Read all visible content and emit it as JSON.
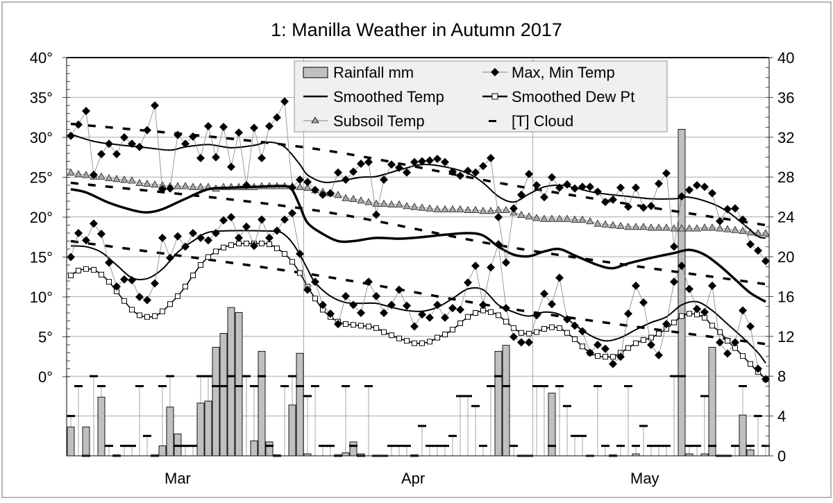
{
  "chart_data": {
    "type": "line",
    "title": "1: Manilla Weather in Autumn 2017",
    "x_ticks": [
      {
        "label": "Mar",
        "date": "Mar 16"
      },
      {
        "label": "Apr",
        "date": "Apr 16"
      },
      {
        "label": "May",
        "date": "May 16"
      }
    ],
    "x_gridlines": [
      "Apr 1",
      "May 1"
    ],
    "y_left": {
      "ticks": [
        "0°",
        "5°",
        "10°",
        "15°",
        "20°",
        "25°",
        "30°",
        "35°",
        "40°"
      ],
      "range": [
        0,
        40
      ],
      "unit": "°C"
    },
    "y_right": {
      "ticks": [
        "0",
        "4",
        "8",
        "12",
        "16",
        "20",
        "24",
        "28",
        "32",
        "36",
        "40"
      ],
      "range": [
        0,
        40
      ]
    },
    "grid": true,
    "legend": {
      "placement": "top-center",
      "entries": [
        "Rainfall mm",
        "Max, Min Temp",
        "Smoothed Temp",
        "Smoothed Dew Pt",
        "Subsoil Temp",
        "[T] Cloud"
      ]
    },
    "colors": {
      "rain_fill": "#c0c0c0",
      "subsoil_fill": "#a8a8a8",
      "line": "#000000",
      "connector": "#808080",
      "legend_bg": "#f0f0f0"
    },
    "daily": {
      "rainfall_mm": [
        2.9,
        0,
        2.9,
        0,
        5.9,
        0,
        0.1,
        0,
        0,
        0,
        0,
        0.1,
        1.0,
        4.9,
        2.2,
        0,
        0,
        5.3,
        5.5,
        10.9,
        12.3,
        14.9,
        14.4,
        0,
        1.5,
        10.5,
        1.4,
        0.1,
        0,
        5.1,
        10.3,
        0.2,
        0,
        0,
        0,
        0.1,
        0.3,
        1.4,
        0.2,
        0,
        0,
        0,
        0,
        0,
        0,
        0.1,
        0,
        0,
        0,
        0,
        0,
        0,
        0,
        0,
        0,
        0,
        10.5,
        11.1,
        0,
        0,
        0,
        0,
        0,
        6.3,
        0,
        0,
        0,
        0,
        0,
        0,
        0,
        0.1,
        0,
        0,
        0.2,
        0,
        0,
        0,
        0,
        0,
        32.8,
        0.2,
        0,
        0.2,
        10.9,
        0,
        0,
        0,
        4.1,
        0.6,
        0,
        0
      ],
      "max_temp": [
        30.2,
        31.6,
        33.3,
        25.3,
        27.9,
        29.2,
        27.9,
        30.0,
        29.2,
        28.8,
        30.9,
        34.0,
        23.5,
        23.6,
        30.3,
        29.2,
        30.1,
        27.4,
        31.4,
        27.5,
        31.3,
        26.3,
        30.6,
        24.0,
        31.2,
        27.4,
        31.4,
        32.5,
        34.5,
        23.7,
        24.7,
        24.4,
        23.4,
        22.8,
        23.0,
        25.6,
        24.7,
        25.7,
        26.7,
        26.9,
        20.3,
        24.7,
        26.6,
        26.2,
        25.6,
        26.9,
        27.0,
        27.1,
        27.3,
        26.9,
        25.7,
        25.2,
        25.8,
        25.6,
        26.4,
        27.4,
        20.0,
        14.3,
        21.1,
        22.8,
        25.4,
        24.0,
        22.5,
        25.0,
        23.7,
        24.1,
        23.6,
        23.8,
        23.8,
        23.2,
        21.9,
        22.2,
        23.7,
        21.3,
        23.7,
        21.2,
        21.4,
        24.2,
        25.5,
        16.3,
        22.6,
        23.4,
        24.0,
        23.8,
        23.0,
        19.5,
        21.0,
        21.1,
        19.7,
        16.6,
        15.8,
        14.5
      ],
      "min_temp": [
        15.0,
        18.0,
        17.1,
        19.2,
        17.9,
        14.3,
        11.3,
        12.2,
        12.1,
        10.0,
        9.6,
        11.7,
        17.4,
        14.9,
        17.6,
        16.3,
        18.0,
        17.4,
        17.1,
        18.0,
        19.6,
        20.0,
        17.4,
        18.8,
        16.4,
        19.7,
        17.4,
        18.3,
        19.7,
        20.5,
        15.4,
        10.9,
        11.9,
        9.0,
        7.9,
        6.6,
        10.1,
        9.0,
        8.0,
        11.9,
        10.1,
        8.0,
        9.0,
        10.9,
        8.9,
        6.3,
        7.8,
        7.4,
        9.0,
        7.4,
        8.6,
        8.4,
        11.8,
        13.9,
        9.0,
        13.7,
        16.6,
        8.6,
        5.0,
        4.3,
        4.3,
        7.7,
        10.4,
        9.1,
        12.4,
        7.2,
        6.4,
        5.7,
        3.0,
        4.0,
        3.5,
        1.6,
        2.5,
        7.9,
        11.4,
        9.3,
        4.0,
        2.7,
        6.6,
        11.9,
        13.9,
        11.0,
        8.5,
        8.1,
        11.4,
        4.3,
        2.9,
        4.3,
        8.3,
        6.3,
        1.0,
        -0.3
      ],
      "subsoil_temp": [
        25.6,
        25.4,
        25.3,
        25.1,
        25.1,
        24.9,
        24.8,
        24.7,
        24.6,
        24.3,
        24.2,
        24.1,
        24.0,
        23.9,
        23.9,
        23.9,
        23.8,
        23.8,
        23.8,
        23.6,
        23.8,
        23.8,
        23.8,
        23.8,
        23.8,
        23.9,
        23.9,
        23.9,
        23.9,
        23.9,
        23.8,
        23.7,
        23.4,
        23.2,
        23.0,
        22.8,
        22.4,
        22.3,
        22.1,
        21.9,
        21.7,
        21.7,
        21.6,
        21.6,
        21.4,
        21.3,
        21.2,
        21.1,
        21.0,
        21.0,
        21.0,
        21.0,
        20.9,
        20.9,
        20.8,
        20.8,
        20.9,
        20.9,
        20.6,
        20.3,
        20.1,
        19.9,
        19.8,
        19.8,
        19.8,
        19.8,
        19.7,
        19.7,
        19.5,
        19.2,
        19.1,
        19.0,
        18.9,
        18.8,
        18.8,
        18.8,
        18.7,
        18.7,
        18.7,
        18.6,
        18.6,
        18.6,
        18.6,
        18.7,
        18.7,
        18.6,
        18.5,
        18.4,
        18.3,
        18.1,
        18.0,
        18.0
      ],
      "smoothed_dew_pt": [
        12.7,
        13.3,
        13.5,
        13.4,
        12.8,
        11.9,
        10.7,
        9.5,
        8.4,
        7.7,
        7.5,
        7.6,
        8.2,
        9.1,
        10.1,
        11.3,
        12.7,
        14.0,
        15.0,
        15.7,
        16.2,
        16.5,
        16.7,
        16.7,
        16.7,
        16.7,
        16.6,
        16.1,
        15.4,
        14.4,
        13.0,
        11.3,
        9.8,
        8.4,
        7.5,
        6.9,
        6.6,
        6.5,
        6.4,
        6.3,
        6.1,
        5.6,
        5.2,
        4.8,
        4.5,
        4.2,
        4.2,
        4.4,
        4.9,
        5.3,
        5.9,
        6.7,
        7.5,
        8.0,
        8.3,
        8.1,
        7.7,
        6.9,
        6.1,
        5.5,
        5.4,
        5.6,
        6.0,
        6.2,
        6.1,
        5.5,
        4.7,
        3.8,
        3.0,
        2.6,
        2.5,
        2.5,
        3.0,
        3.6,
        4.2,
        4.6,
        4.9,
        5.4,
        6.0,
        6.8,
        7.6,
        7.9,
        7.8,
        7.4,
        6.4,
        5.6,
        4.5,
        3.6,
        2.6,
        1.6,
        0.6,
        -0.3
      ],
      "cloud_oktas": [
        4,
        7,
        0,
        8,
        7,
        1,
        0,
        1,
        1,
        7,
        2,
        0,
        7,
        8,
        1,
        1,
        1,
        8,
        8,
        7,
        7,
        8,
        7,
        8,
        7,
        8,
        1,
        0,
        7,
        8,
        7,
        6,
        7,
        1,
        1,
        0,
        7,
        1,
        0,
        7,
        0,
        0,
        1,
        1,
        1,
        0,
        3,
        1,
        1,
        1,
        2,
        6,
        6,
        5,
        1,
        7,
        8,
        7,
        1,
        0,
        0,
        7,
        7,
        1,
        7,
        5,
        2,
        2,
        0,
        7,
        1,
        0,
        1,
        7,
        1,
        3,
        1,
        1,
        1,
        8,
        8,
        1,
        1,
        6,
        1,
        0,
        0,
        1,
        7,
        1,
        4,
        1
      ]
    },
    "smoothed_temp": {
      "max": [
        [
          "Mar 1",
          30.4
        ],
        [
          "Mar 4",
          29.5
        ],
        [
          "Mar 7",
          29.1
        ],
        [
          "Mar 11",
          28.7
        ],
        [
          "Mar 14",
          28.4
        ],
        [
          "Mar 16",
          28.8
        ],
        [
          "Mar 19",
          29.1
        ],
        [
          "Mar 22",
          28.7
        ],
        [
          "Mar 25",
          29.0
        ],
        [
          "Mar 27",
          29.4
        ],
        [
          "Mar 29",
          28.8
        ],
        [
          "Mar 31",
          26.6
        ],
        [
          "Apr 1",
          25.3
        ],
        [
          "Apr 3",
          24.4
        ],
        [
          "Apr 5",
          24.5
        ],
        [
          "Apr 8",
          25.0
        ],
        [
          "Apr 10",
          25.1
        ],
        [
          "Apr 13",
          25.9
        ],
        [
          "Apr 16",
          26.6
        ],
        [
          "Apr 19",
          26.3
        ],
        [
          "Apr 22",
          25.5
        ],
        [
          "Apr 24",
          24.3
        ],
        [
          "Apr 26",
          22.6
        ],
        [
          "Apr 28",
          21.9
        ],
        [
          "Apr 30",
          22.9
        ],
        [
          "May 2",
          23.8
        ],
        [
          "May 4",
          24.0
        ],
        [
          "May 6",
          23.7
        ],
        [
          "May 8",
          23.2
        ],
        [
          "May 10",
          22.9
        ],
        [
          "May 13",
          22.6
        ],
        [
          "May 16",
          22.3
        ],
        [
          "May 19",
          22.3
        ],
        [
          "May 21",
          22.5
        ],
        [
          "May 24",
          21.7
        ],
        [
          "May 26",
          20.7
        ],
        [
          "May 28",
          19.2
        ],
        [
          "May 30",
          17.6
        ],
        [
          "May 31",
          17.4
        ]
      ],
      "mean": [
        [
          "Mar 1",
          23.5
        ],
        [
          "Mar 3",
          23.1
        ],
        [
          "Mar 6",
          21.8
        ],
        [
          "Mar 9",
          20.9
        ],
        [
          "Mar 11",
          20.6
        ],
        [
          "Mar 13",
          21.0
        ],
        [
          "Mar 16",
          22.3
        ],
        [
          "Mar 19",
          23.5
        ],
        [
          "Mar 22",
          23.7
        ],
        [
          "Mar 25",
          23.8
        ],
        [
          "Mar 29",
          23.9
        ],
        [
          "Mar 30",
          23.4
        ],
        [
          "Mar 31",
          21.4
        ],
        [
          "Apr 1",
          19.3
        ],
        [
          "Apr 3",
          17.9
        ],
        [
          "Apr 5",
          17.0
        ],
        [
          "Apr 7",
          17.0
        ],
        [
          "Apr 10",
          17.4
        ],
        [
          "Apr 13",
          17.3
        ],
        [
          "Apr 16",
          17.5
        ],
        [
          "Apr 19",
          17.8
        ],
        [
          "Apr 22",
          18.0
        ],
        [
          "Apr 24",
          17.7
        ],
        [
          "Apr 26",
          16.3
        ],
        [
          "Apr 28",
          15.3
        ],
        [
          "Apr 30",
          15.1
        ],
        [
          "May 2",
          15.7
        ],
        [
          "May 4",
          16.0
        ],
        [
          "May 6",
          15.2
        ],
        [
          "May 9",
          14.0
        ],
        [
          "May 11",
          13.6
        ],
        [
          "May 13",
          14.2
        ],
        [
          "May 16",
          14.9
        ],
        [
          "May 19",
          15.5
        ],
        [
          "May 21",
          15.9
        ],
        [
          "May 23",
          15.3
        ],
        [
          "May 25",
          13.9
        ],
        [
          "May 27",
          12.2
        ],
        [
          "May 29",
          10.5
        ],
        [
          "May 31",
          9.4
        ]
      ],
      "min": [
        [
          "Mar 1",
          16.4
        ],
        [
          "Mar 3",
          16.3
        ],
        [
          "Mar 5",
          15.6
        ],
        [
          "Mar 7",
          14.0
        ],
        [
          "Mar 9",
          12.4
        ],
        [
          "Mar 11",
          12.3
        ],
        [
          "Mar 13",
          13.5
        ],
        [
          "Mar 15",
          15.6
        ],
        [
          "Mar 17",
          17.0
        ],
        [
          "Mar 19",
          18.1
        ],
        [
          "Mar 22",
          18.3
        ],
        [
          "Mar 25",
          18.3
        ],
        [
          "Mar 28",
          18.2
        ],
        [
          "Mar 29",
          17.8
        ],
        [
          "Mar 30",
          16.8
        ],
        [
          "Mar 31",
          15.3
        ],
        [
          "Apr 1",
          13.5
        ],
        [
          "Apr 2",
          11.8
        ],
        [
          "Apr 4",
          10.1
        ],
        [
          "Apr 6",
          9.3
        ],
        [
          "Apr 8",
          9.2
        ],
        [
          "Apr 10",
          9.2
        ],
        [
          "Apr 12",
          8.7
        ],
        [
          "Apr 14",
          8.3
        ],
        [
          "Apr 16",
          8.2
        ],
        [
          "Apr 18",
          8.7
        ],
        [
          "Apr 20",
          9.8
        ],
        [
          "Apr 22",
          11.0
        ],
        [
          "Apr 24",
          10.9
        ],
        [
          "Apr 26",
          9.0
        ],
        [
          "Apr 28",
          8.1
        ],
        [
          "Apr 30",
          7.6
        ],
        [
          "May 2",
          8.1
        ],
        [
          "May 4",
          7.8
        ],
        [
          "May 6",
          6.5
        ],
        [
          "May 8",
          5.2
        ],
        [
          "May 10",
          4.5
        ],
        [
          "May 12",
          4.9
        ],
        [
          "May 14",
          5.9
        ],
        [
          "May 16",
          6.8
        ],
        [
          "May 18",
          7.5
        ],
        [
          "May 20",
          9.0
        ],
        [
          "May 22",
          9.4
        ],
        [
          "May 24",
          8.3
        ],
        [
          "May 26",
          6.6
        ],
        [
          "May 28",
          4.9
        ],
        [
          "May 30",
          3.0
        ],
        [
          "May 31",
          1.7
        ]
      ]
    },
    "dashed_trends": [
      [
        [
          "Mar 1",
          31.7
        ],
        [
          "Apr 1",
          28.7
        ],
        [
          "Apr 29",
          23.8
        ],
        [
          "May 31",
          19.0
        ]
      ],
      [
        [
          "Mar 1",
          24.3
        ],
        [
          "Apr 1",
          21.0
        ],
        [
          "Apr 29",
          16.0
        ],
        [
          "May 31",
          11.6
        ]
      ],
      [
        [
          "Mar 1",
          17.0
        ],
        [
          "Apr 1",
          12.9
        ],
        [
          "Apr 29",
          8.3
        ],
        [
          "May 31",
          4.1
        ]
      ]
    ]
  }
}
